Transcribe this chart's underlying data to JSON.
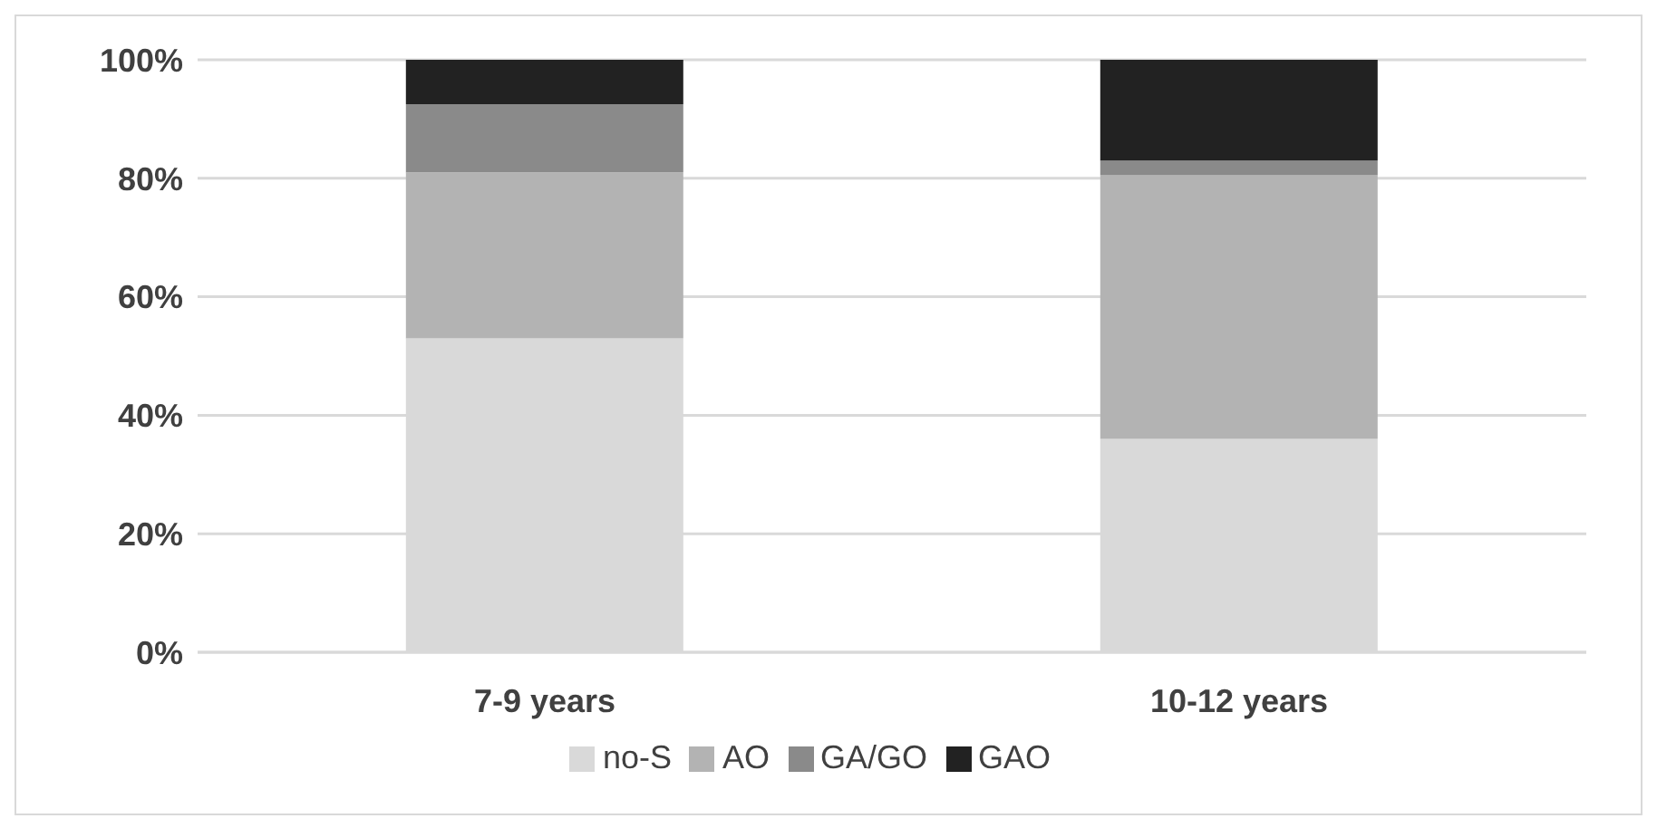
{
  "chart_data": {
    "type": "bar",
    "stacked": true,
    "categories": [
      "7-9 years",
      "10-12 years"
    ],
    "series": [
      {
        "name": "no-S",
        "color": "#d9d9d9",
        "values": [
          53,
          36
        ]
      },
      {
        "name": "AO",
        "color": "#b3b3b3",
        "values": [
          28,
          44.5
        ]
      },
      {
        "name": "GA/GO",
        "color": "#8a8a8a",
        "values": [
          11.5,
          2.5
        ]
      },
      {
        "name": "GAO",
        "color": "#222222",
        "values": [
          7.5,
          17
        ]
      }
    ],
    "ylim": [
      0,
      100
    ],
    "yticks": [
      {
        "value": 0,
        "label": "0%"
      },
      {
        "value": 20,
        "label": "20%"
      },
      {
        "value": 40,
        "label": "40%"
      },
      {
        "value": 60,
        "label": "60%"
      },
      {
        "value": 80,
        "label": "80%"
      },
      {
        "value": 100,
        "label": "100%"
      }
    ],
    "grid": "y",
    "legend": "bottom"
  }
}
